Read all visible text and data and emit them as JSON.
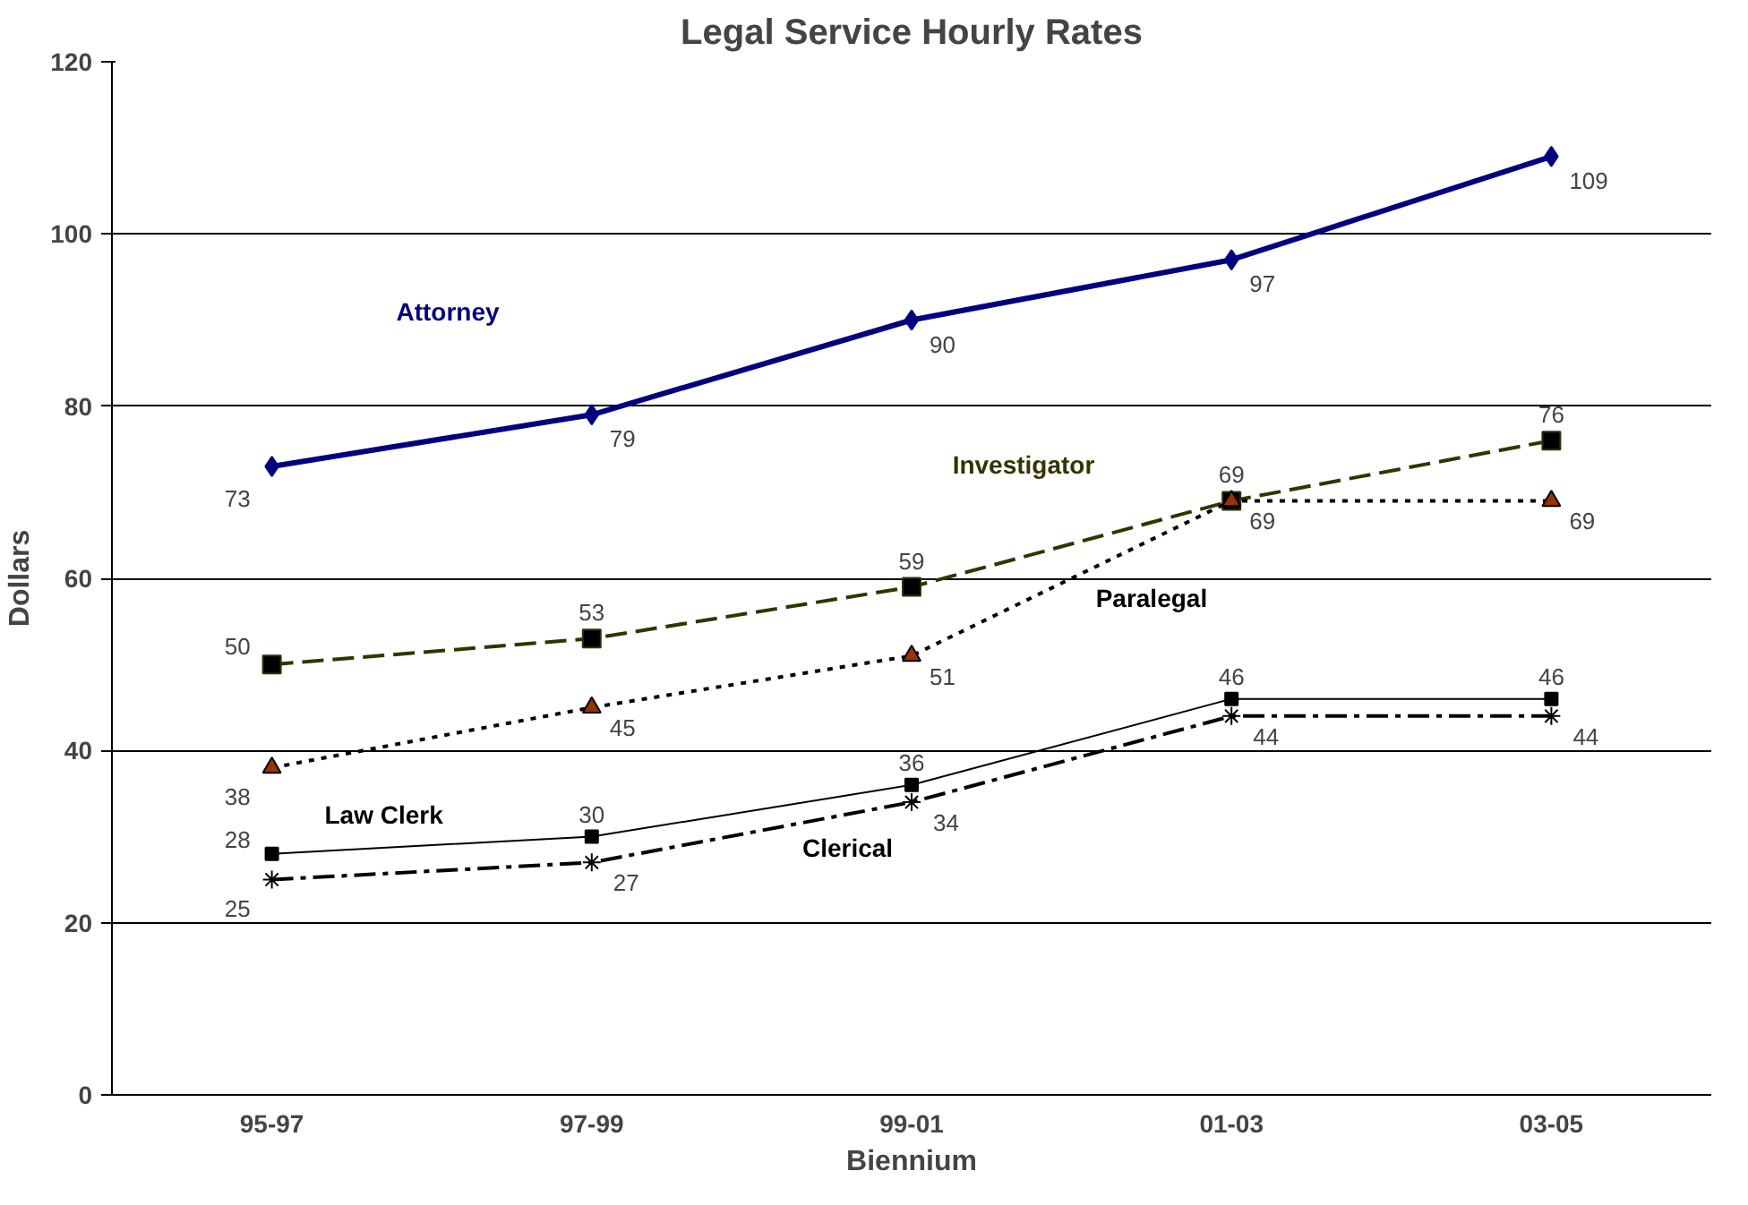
{
  "chart_data": {
    "type": "line",
    "title": "Legal Service Hourly Rates",
    "xlabel": "Biennium",
    "ylabel": "Dollars",
    "categories": [
      "95-97",
      "97-99",
      "99-01",
      "01-03",
      "03-05"
    ],
    "series": [
      {
        "name": "Attorney",
        "color": "#000080",
        "values": [
          73,
          79,
          90,
          97,
          109
        ],
        "marker": "diamond",
        "line_style": "solid"
      },
      {
        "name": "Investigator",
        "color": "#333300",
        "values": [
          50,
          53,
          59,
          69,
          76
        ],
        "marker": "square",
        "line_style": "dashed"
      },
      {
        "name": "Paralegal",
        "color": "#000000",
        "values": [
          38,
          45,
          51,
          69,
          69
        ],
        "marker": "triangle",
        "line_style": "dotted"
      },
      {
        "name": "Law Clerk",
        "color": "#000000",
        "values": [
          28,
          30,
          36,
          46,
          46
        ],
        "marker": "square",
        "line_style": "solid"
      },
      {
        "name": "Clerical",
        "color": "#000000",
        "values": [
          25,
          27,
          34,
          44,
          44
        ],
        "marker": "cross",
        "line_style": "dashdot"
      }
    ],
    "ylim": [
      0,
      120
    ],
    "yticks": [
      0,
      20,
      40,
      60,
      80,
      100,
      120
    ],
    "grid": "y",
    "data_labels": true
  }
}
